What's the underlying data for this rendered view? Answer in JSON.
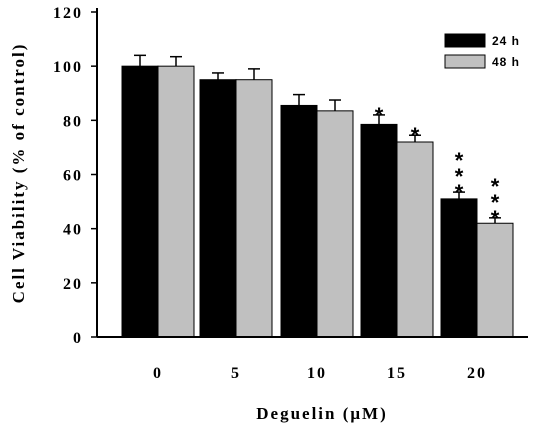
{
  "chart_data": {
    "type": "bar",
    "xlabel": "Deguelin (μM)",
    "ylabel": "Cell Viability (% of control)",
    "categories": [
      "0",
      "5",
      "10",
      "15",
      "20"
    ],
    "ylim": [
      0,
      120
    ],
    "yticks": [
      "0",
      "20",
      "40",
      "60",
      "80",
      "100",
      "120"
    ],
    "legend_position": "top-right",
    "grid": false,
    "series": [
      {
        "name": "24 h",
        "color": "#000000",
        "values": [
          100,
          95,
          85.5,
          78.5,
          51
        ],
        "errors": [
          4,
          2.5,
          4,
          3.5,
          2.5
        ],
        "significance": [
          "",
          "",
          "",
          "*",
          "***"
        ]
      },
      {
        "name": "48 h",
        "color": "#c0c0c0",
        "values": [
          100,
          95,
          83.5,
          72,
          42
        ],
        "errors": [
          3.5,
          4,
          4,
          2.5,
          2
        ],
        "significance": [
          "",
          "",
          "",
          "*",
          "***"
        ]
      }
    ]
  }
}
